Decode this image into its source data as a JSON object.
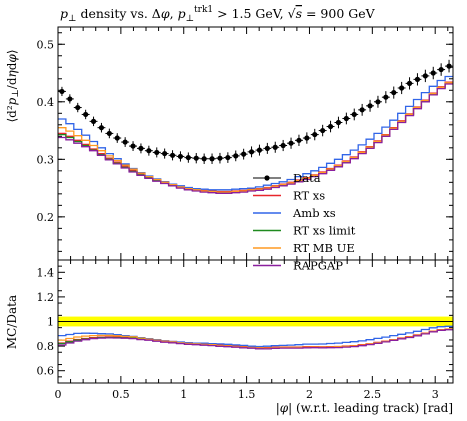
{
  "chart_data": [
    {
      "type": "line",
      "title": "p⊥ density vs. Δφ, p⊥trk1 > 1.5 GeV, √s = 900 GeV",
      "ylabel": "⟨d²p⊥/dηdφ⟩",
      "xlim": [
        0,
        3.1416
      ],
      "ylim": [
        0.125,
        0.53
      ],
      "yticks": [
        0.2,
        0.3,
        0.4,
        0.5
      ],
      "yticks_minor_step": 0.02,
      "x": [
        0.0314,
        0.0942,
        0.157,
        0.2199,
        0.2827,
        0.3456,
        0.4084,
        0.4712,
        0.5341,
        0.5969,
        0.6597,
        0.7226,
        0.7854,
        0.8482,
        0.9111,
        0.9739,
        1.0367,
        1.0996,
        1.1624,
        1.2252,
        1.2881,
        1.3509,
        1.4137,
        1.4765,
        1.5394,
        1.6022,
        1.665,
        1.7279,
        1.7907,
        1.8535,
        1.9164,
        1.9792,
        2.042,
        2.1049,
        2.1677,
        2.2305,
        2.2934,
        2.3562,
        2.419,
        2.4819,
        2.5447,
        2.6075,
        2.6704,
        2.7332,
        2.796,
        2.8588,
        2.9217,
        2.9845,
        3.0473,
        3.1102
      ],
      "series": [
        {
          "name": "Data",
          "color": "#000000",
          "marker": "dot",
          "values": [
            0.418,
            0.405,
            0.39,
            0.378,
            0.366,
            0.355,
            0.345,
            0.337,
            0.33,
            0.323,
            0.319,
            0.315,
            0.312,
            0.31,
            0.307,
            0.305,
            0.303,
            0.302,
            0.301,
            0.301,
            0.302,
            0.303,
            0.306,
            0.309,
            0.313,
            0.316,
            0.319,
            0.321,
            0.324,
            0.328,
            0.333,
            0.337,
            0.343,
            0.35,
            0.357,
            0.364,
            0.371,
            0.378,
            0.386,
            0.393,
            0.4,
            0.408,
            0.416,
            0.424,
            0.432,
            0.439,
            0.445,
            0.45,
            0.456,
            0.462
          ]
        },
        {
          "name": "RT xs",
          "color": "#e8262b",
          "values": [
            0.345,
            0.34,
            0.333,
            0.326,
            0.318,
            0.31,
            0.302,
            0.295,
            0.288,
            0.281,
            0.275,
            0.27,
            0.265,
            0.261,
            0.257,
            0.253,
            0.25,
            0.248,
            0.246,
            0.245,
            0.244,
            0.244,
            0.245,
            0.246,
            0.248,
            0.249,
            0.251,
            0.254,
            0.257,
            0.26,
            0.264,
            0.268,
            0.273,
            0.278,
            0.284,
            0.29,
            0.297,
            0.304,
            0.313,
            0.322,
            0.332,
            0.343,
            0.355,
            0.367,
            0.379,
            0.391,
            0.403,
            0.415,
            0.426,
            0.434
          ]
        },
        {
          "name": "Amb xs",
          "color": "#3165e8",
          "values": [
            0.37,
            0.362,
            0.352,
            0.342,
            0.331,
            0.32,
            0.31,
            0.301,
            0.292,
            0.284,
            0.277,
            0.271,
            0.266,
            0.261,
            0.257,
            0.254,
            0.251,
            0.249,
            0.248,
            0.247,
            0.247,
            0.247,
            0.248,
            0.249,
            0.25,
            0.252,
            0.255,
            0.258,
            0.261,
            0.265,
            0.27,
            0.275,
            0.28,
            0.286,
            0.293,
            0.3,
            0.308,
            0.316,
            0.325,
            0.335,
            0.345,
            0.356,
            0.368,
            0.38,
            0.392,
            0.404,
            0.416,
            0.427,
            0.437,
            0.444
          ]
        },
        {
          "name": "RT xs limit",
          "color": "#1f8a1f",
          "values": [
            0.343,
            0.338,
            0.331,
            0.324,
            0.316,
            0.308,
            0.3,
            0.293,
            0.286,
            0.279,
            0.273,
            0.268,
            0.263,
            0.259,
            0.255,
            0.251,
            0.248,
            0.246,
            0.244,
            0.243,
            0.242,
            0.242,
            0.243,
            0.244,
            0.246,
            0.247,
            0.249,
            0.252,
            0.255,
            0.258,
            0.262,
            0.266,
            0.271,
            0.276,
            0.282,
            0.288,
            0.295,
            0.302,
            0.311,
            0.32,
            0.33,
            0.341,
            0.353,
            0.365,
            0.377,
            0.389,
            0.401,
            0.413,
            0.424,
            0.432
          ]
        },
        {
          "name": "RT MB UE",
          "color": "#ff9a22",
          "values": [
            0.355,
            0.349,
            0.341,
            0.333,
            0.324,
            0.315,
            0.306,
            0.298,
            0.29,
            0.283,
            0.276,
            0.27,
            0.265,
            0.26,
            0.256,
            0.252,
            0.249,
            0.247,
            0.245,
            0.244,
            0.243,
            0.243,
            0.244,
            0.245,
            0.247,
            0.248,
            0.25,
            0.253,
            0.256,
            0.259,
            0.263,
            0.267,
            0.272,
            0.277,
            0.283,
            0.289,
            0.296,
            0.303,
            0.312,
            0.321,
            0.331,
            0.342,
            0.354,
            0.366,
            0.378,
            0.39,
            0.402,
            0.414,
            0.425,
            0.433
          ]
        },
        {
          "name": "RAPGAP",
          "color": "#8a1f9e",
          "values": [
            0.338,
            0.334,
            0.328,
            0.322,
            0.315,
            0.307,
            0.299,
            0.292,
            0.285,
            0.278,
            0.272,
            0.267,
            0.262,
            0.258,
            0.254,
            0.25,
            0.247,
            0.245,
            0.243,
            0.242,
            0.241,
            0.241,
            0.242,
            0.243,
            0.245,
            0.246,
            0.248,
            0.251,
            0.254,
            0.257,
            0.261,
            0.265,
            0.27,
            0.275,
            0.281,
            0.287,
            0.294,
            0.301,
            0.31,
            0.319,
            0.329,
            0.34,
            0.352,
            0.364,
            0.376,
            0.388,
            0.4,
            0.412,
            0.423,
            0.431
          ]
        }
      ],
      "legend": [
        "Data",
        "RT xs",
        "Amb xs",
        "RT xs limit",
        "RT MB UE",
        "RAPGAP"
      ]
    },
    {
      "type": "line",
      "ylabel": "MC/Data",
      "xlabel": "|φ| (w.r.t. leading track) [rad]",
      "xlim": [
        0,
        3.1416
      ],
      "ylim": [
        0.5,
        1.5
      ],
      "xticks": [
        "0",
        "0.5",
        "1",
        "1.5",
        "2",
        "2.5",
        "3"
      ],
      "yticks": [
        "0.6",
        "0.8",
        "1",
        "1.2",
        "1.4"
      ],
      "band": {
        "lower": 0.96,
        "upper": 1.04,
        "color": "#ffff00"
      },
      "series": [
        {
          "name": "RT xs",
          "color": "#e8262b",
          "values": [
            0.825,
            0.84,
            0.854,
            0.862,
            0.869,
            0.873,
            0.875,
            0.875,
            0.873,
            0.87,
            0.862,
            0.857,
            0.849,
            0.842,
            0.837,
            0.83,
            0.825,
            0.821,
            0.817,
            0.814,
            0.808,
            0.805,
            0.801,
            0.796,
            0.792,
            0.788,
            0.787,
            0.791,
            0.793,
            0.793,
            0.793,
            0.795,
            0.796,
            0.794,
            0.795,
            0.797,
            0.801,
            0.804,
            0.811,
            0.819,
            0.83,
            0.841,
            0.853,
            0.866,
            0.877,
            0.891,
            0.906,
            0.922,
            0.934,
            0.939
          ]
        },
        {
          "name": "Amb xs",
          "color": "#3165e8",
          "values": [
            0.885,
            0.894,
            0.903,
            0.905,
            0.904,
            0.901,
            0.899,
            0.893,
            0.885,
            0.879,
            0.868,
            0.86,
            0.853,
            0.842,
            0.837,
            0.833,
            0.828,
            0.824,
            0.824,
            0.82,
            0.818,
            0.815,
            0.81,
            0.806,
            0.799,
            0.797,
            0.799,
            0.804,
            0.806,
            0.808,
            0.811,
            0.816,
            0.816,
            0.817,
            0.821,
            0.824,
            0.83,
            0.836,
            0.842,
            0.852,
            0.863,
            0.873,
            0.885,
            0.896,
            0.907,
            0.92,
            0.935,
            0.949,
            0.958,
            0.961
          ]
        },
        {
          "name": "RT xs limit",
          "color": "#1f8a1f",
          "values": [
            0.821,
            0.835,
            0.849,
            0.857,
            0.863,
            0.868,
            0.87,
            0.869,
            0.867,
            0.864,
            0.856,
            0.851,
            0.843,
            0.835,
            0.831,
            0.823,
            0.818,
            0.815,
            0.811,
            0.807,
            0.801,
            0.799,
            0.794,
            0.79,
            0.786,
            0.782,
            0.781,
            0.785,
            0.787,
            0.787,
            0.787,
            0.789,
            0.79,
            0.789,
            0.79,
            0.791,
            0.795,
            0.799,
            0.806,
            0.814,
            0.825,
            0.836,
            0.849,
            0.861,
            0.873,
            0.886,
            0.901,
            0.918,
            0.93,
            0.935
          ]
        },
        {
          "name": "RT MB UE",
          "color": "#ff9a22",
          "values": [
            0.849,
            0.862,
            0.874,
            0.881,
            0.885,
            0.887,
            0.887,
            0.884,
            0.879,
            0.876,
            0.865,
            0.857,
            0.849,
            0.839,
            0.834,
            0.826,
            0.822,
            0.818,
            0.814,
            0.811,
            0.805,
            0.802,
            0.797,
            0.793,
            0.789,
            0.785,
            0.784,
            0.788,
            0.79,
            0.79,
            0.79,
            0.792,
            0.793,
            0.791,
            0.793,
            0.794,
            0.798,
            0.802,
            0.808,
            0.817,
            0.828,
            0.838,
            0.851,
            0.863,
            0.875,
            0.888,
            0.903,
            0.92,
            0.932,
            0.937
          ]
        },
        {
          "name": "RAPGAP",
          "color": "#8a1f9e",
          "values": [
            0.809,
            0.825,
            0.841,
            0.852,
            0.861,
            0.865,
            0.867,
            0.866,
            0.864,
            0.861,
            0.853,
            0.848,
            0.84,
            0.832,
            0.827,
            0.82,
            0.815,
            0.811,
            0.807,
            0.804,
            0.798,
            0.795,
            0.791,
            0.786,
            0.783,
            0.778,
            0.777,
            0.782,
            0.784,
            0.784,
            0.784,
            0.786,
            0.787,
            0.786,
            0.787,
            0.788,
            0.792,
            0.796,
            0.803,
            0.812,
            0.823,
            0.834,
            0.846,
            0.859,
            0.87,
            0.884,
            0.899,
            0.916,
            0.928,
            0.933
          ]
        }
      ]
    }
  ]
}
